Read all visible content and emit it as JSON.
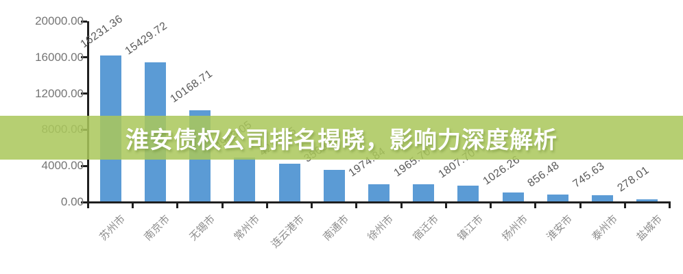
{
  "banner": {
    "title": "淮安债权公司排名揭晓，影响力深度解析",
    "bg_color": "#aac75b",
    "bg_opacity": 0.86,
    "text_color": "#ffffff"
  },
  "chart_data": {
    "type": "bar",
    "title": "",
    "xlabel": "",
    "ylabel": "",
    "categories": [
      "苏州市",
      "南京市",
      "无锡市",
      "常州市",
      "连云港市",
      "南通市",
      "徐州市",
      "宿迁市",
      "镇江市",
      "扬州市",
      "淮安市",
      "泰州市",
      "盐城市"
    ],
    "values": [
      16231.36,
      15429.72,
      10168.71,
      4943.05,
      4231.35,
      3568.62,
      1974.84,
      1965.7,
      1807.7,
      1026.26,
      856.48,
      745.63,
      278.01
    ],
    "value_labels": [
      "16231.36",
      "15429.72",
      "10168.71",
      "4943.05",
      "4231.35",
      "3568.62",
      "1974.84",
      "1965.70",
      "1807.70",
      "1026.26",
      "856.48",
      "745.63",
      "278.01"
    ],
    "ylim": [
      0,
      20000
    ],
    "y_ticks": [
      "20000.00",
      "16000.00",
      "12000.00",
      "8000.00",
      "4000.00",
      "0.00"
    ],
    "grid": false,
    "legend": false,
    "bar_color": "#5b9bd5",
    "axis_color": "#1f1f1f",
    "y_tick_label_color": "#757575",
    "value_label_color": "#595959",
    "category_label_color": "#8c8c8c"
  }
}
